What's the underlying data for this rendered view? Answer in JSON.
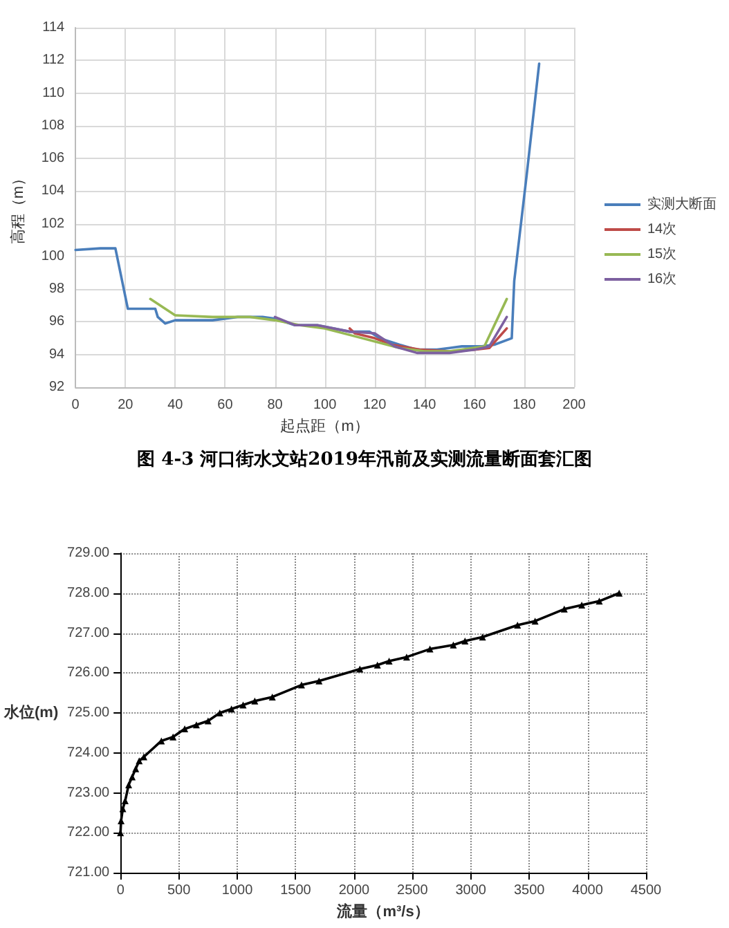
{
  "chart_data": [
    {
      "type": "line",
      "title": "图 4-3 河口街水文站2019年汛前及实测流量断面套汇图",
      "xlabel": "起点距（m）",
      "ylabel": "高程（m）",
      "xlim": [
        0,
        200
      ],
      "xticks": [
        0,
        20,
        40,
        60,
        80,
        100,
        120,
        140,
        160,
        180,
        200
      ],
      "ylim": [
        92,
        114
      ],
      "yticks": [
        92,
        94,
        96,
        98,
        100,
        102,
        104,
        106,
        108,
        110,
        112,
        114
      ],
      "grid": true,
      "legend": "right",
      "marker": "none",
      "line_style": "solid",
      "series": [
        {
          "name": "实测大断面",
          "color": "#4a7ebb",
          "x": [
            0,
            10,
            16,
            21,
            28,
            32,
            33,
            36,
            40,
            55,
            65,
            75,
            80,
            88,
            97,
            110,
            118,
            122,
            130,
            137,
            145,
            150,
            155,
            163,
            168,
            175,
            176,
            181,
            186
          ],
          "values": [
            100.4,
            100.5,
            100.5,
            96.8,
            96.8,
            96.8,
            96.3,
            95.9,
            96.1,
            96.1,
            96.3,
            96.3,
            96.2,
            95.8,
            95.8,
            95.4,
            95.4,
            95.0,
            94.6,
            94.3,
            94.3,
            94.4,
            94.5,
            94.5,
            94.6,
            95.0,
            98.5,
            105,
            111.8
          ]
        },
        {
          "name": "14次",
          "color": "#be4b48",
          "x": [
            110,
            112,
            120,
            127,
            138,
            150,
            160,
            166,
            173
          ],
          "values": [
            95.6,
            95.3,
            95.0,
            94.6,
            94.3,
            94.2,
            94.3,
            94.4,
            95.6
          ]
        },
        {
          "name": "15次",
          "color": "#98b954",
          "x": [
            30,
            40,
            55,
            70,
            80,
            90,
            100,
            120,
            130,
            140,
            150,
            164,
            173
          ],
          "values": [
            97.4,
            96.4,
            96.3,
            96.3,
            96.1,
            95.8,
            95.6,
            94.8,
            94.4,
            94.2,
            94.2,
            94.5,
            97.4
          ]
        },
        {
          "name": "16次",
          "color": "#7d60a0",
          "x": [
            80,
            88,
            97,
            110,
            120,
            128,
            137,
            150,
            160,
            166,
            173
          ],
          "values": [
            96.3,
            95.8,
            95.8,
            95.4,
            95.3,
            94.5,
            94.1,
            94.1,
            94.3,
            94.5,
            96.3
          ]
        }
      ]
    },
    {
      "type": "line",
      "xlabel": "流量（m³/s）",
      "ylabel": "水位(m)",
      "xlim": [
        0,
        4500
      ],
      "xticks": [
        0,
        500,
        1000,
        1500,
        2000,
        2500,
        3000,
        3500,
        4000,
        4500
      ],
      "ylim": [
        721,
        729
      ],
      "yticks": [
        {
          "value": 721,
          "label": "721.00"
        },
        {
          "value": 722,
          "label": "722.00"
        },
        {
          "value": 723,
          "label": "723.00"
        },
        {
          "value": 724,
          "label": "724.00"
        },
        {
          "value": 725,
          "label": "725.00"
        },
        {
          "value": 726,
          "label": "726.00"
        },
        {
          "value": 727,
          "label": "727.00"
        },
        {
          "value": 728,
          "label": "728.00"
        },
        {
          "value": 729,
          "label": "729.00"
        }
      ],
      "grid": true,
      "legend": false,
      "marker": "triangle",
      "line_style": "solid",
      "series": [
        {
          "color": "#000000",
          "x": [
            0,
            5,
            20,
            40,
            70,
            100,
            130,
            160,
            200,
            350,
            450,
            550,
            650,
            750,
            850,
            950,
            1050,
            1150,
            1300,
            1550,
            1700,
            2050,
            2200,
            2300,
            2450,
            2650,
            2850,
            2950,
            3100,
            3400,
            3550,
            3800,
            3950,
            4100,
            4270
          ],
          "values": [
            722.0,
            722.3,
            722.6,
            722.8,
            723.2,
            723.4,
            723.6,
            723.8,
            723.9,
            724.3,
            724.4,
            724.6,
            724.7,
            724.8,
            725.0,
            725.1,
            725.2,
            725.3,
            725.4,
            725.7,
            725.8,
            726.1,
            726.2,
            726.3,
            726.4,
            726.6,
            726.7,
            726.8,
            726.9,
            727.2,
            727.3,
            727.6,
            727.7,
            727.8,
            728.0
          ]
        }
      ]
    }
  ]
}
